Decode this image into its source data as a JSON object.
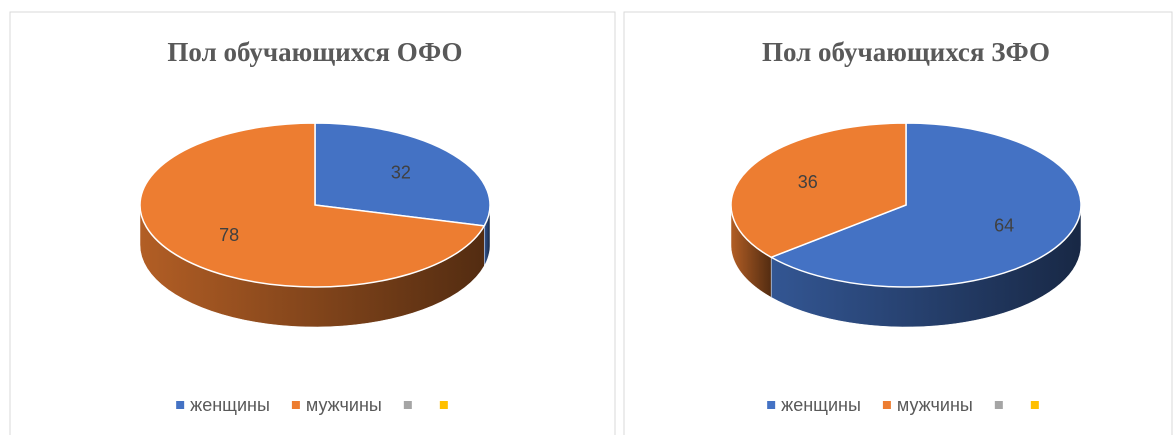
{
  "chart_data": [
    {
      "type": "pie3d",
      "title": "Пол обучающихся ОФО",
      "categories": [
        "женщины",
        "мужчины",
        null,
        null
      ],
      "values": [
        32,
        78,
        null,
        null
      ],
      "colors": [
        "#4472c4",
        "#ed7d31",
        "#a5a5a5",
        "#ffc000"
      ]
    },
    {
      "type": "pie3d",
      "title": "Пол обучающихся ЗФО",
      "categories": [
        "женщины",
        "мужчины",
        null,
        null
      ],
      "values": [
        64,
        36,
        null,
        null
      ],
      "colors": [
        "#4472c4",
        "#ed7d31",
        "#a5a5a5",
        "#ffc000"
      ]
    }
  ]
}
